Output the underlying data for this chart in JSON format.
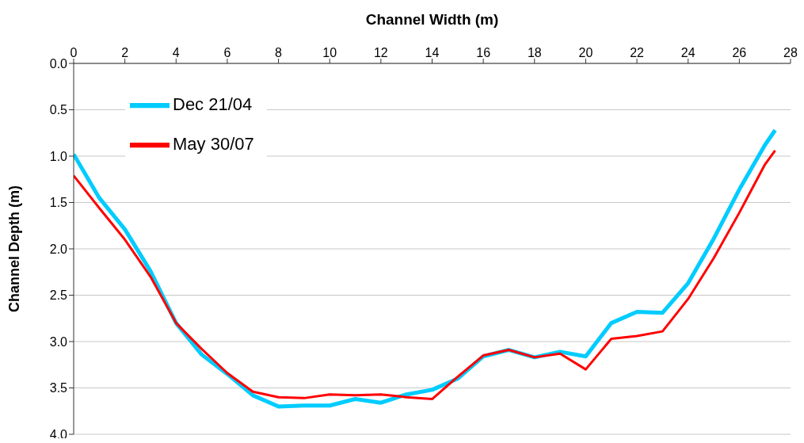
{
  "chart_data": {
    "type": "line",
    "xlabel": "Channel Width (m)",
    "ylabel": "Channel Depth (m)",
    "x": [
      0,
      1,
      2,
      3,
      4,
      5,
      6,
      7,
      8,
      9,
      10,
      11,
      12,
      13,
      14,
      15,
      16,
      17,
      18,
      19,
      20,
      21,
      22,
      23,
      24,
      25,
      26,
      27,
      27.4
    ],
    "series": [
      {
        "name": "Dec 21/04",
        "color": "#00ccff",
        "values": [
          0.98,
          1.45,
          1.79,
          2.24,
          2.8,
          3.14,
          3.35,
          3.58,
          3.7,
          3.69,
          3.69,
          3.62,
          3.66,
          3.57,
          3.52,
          3.4,
          3.16,
          3.09,
          3.17,
          3.11,
          3.16,
          2.8,
          2.68,
          2.69,
          2.37,
          1.89,
          1.36,
          0.88,
          0.72
        ]
      },
      {
        "name": "May 30/07",
        "color": "#ff0000",
        "values": [
          1.21,
          1.56,
          1.9,
          2.3,
          2.8,
          3.08,
          3.34,
          3.54,
          3.6,
          3.61,
          3.57,
          3.58,
          3.57,
          3.6,
          3.62,
          3.38,
          3.15,
          3.09,
          3.17,
          3.13,
          3.3,
          2.97,
          2.94,
          2.89,
          2.54,
          2.1,
          1.61,
          1.09,
          0.94
        ]
      }
    ],
    "xlim": [
      0,
      28
    ],
    "xticks": [
      0,
      2,
      4,
      6,
      8,
      10,
      12,
      14,
      16,
      18,
      20,
      22,
      24,
      26,
      28
    ],
    "ylim": [
      4,
      0
    ],
    "yticks": [
      {
        "value": 0,
        "label": "0.0"
      },
      {
        "value": 0.5,
        "label": "0.5"
      },
      {
        "value": 1,
        "label": "1.0"
      },
      {
        "value": 1.5,
        "label": "1.5"
      },
      {
        "value": 2,
        "label": "2.0"
      },
      {
        "value": 2.5,
        "label": "2.5"
      },
      {
        "value": 3,
        "label": "3.0"
      },
      {
        "value": 3.5,
        "label": "3.5"
      },
      {
        "value": 4,
        "label": "4.0"
      }
    ],
    "grid": "y",
    "legend": "top left",
    "marker": "none",
    "line_style": "solid"
  }
}
